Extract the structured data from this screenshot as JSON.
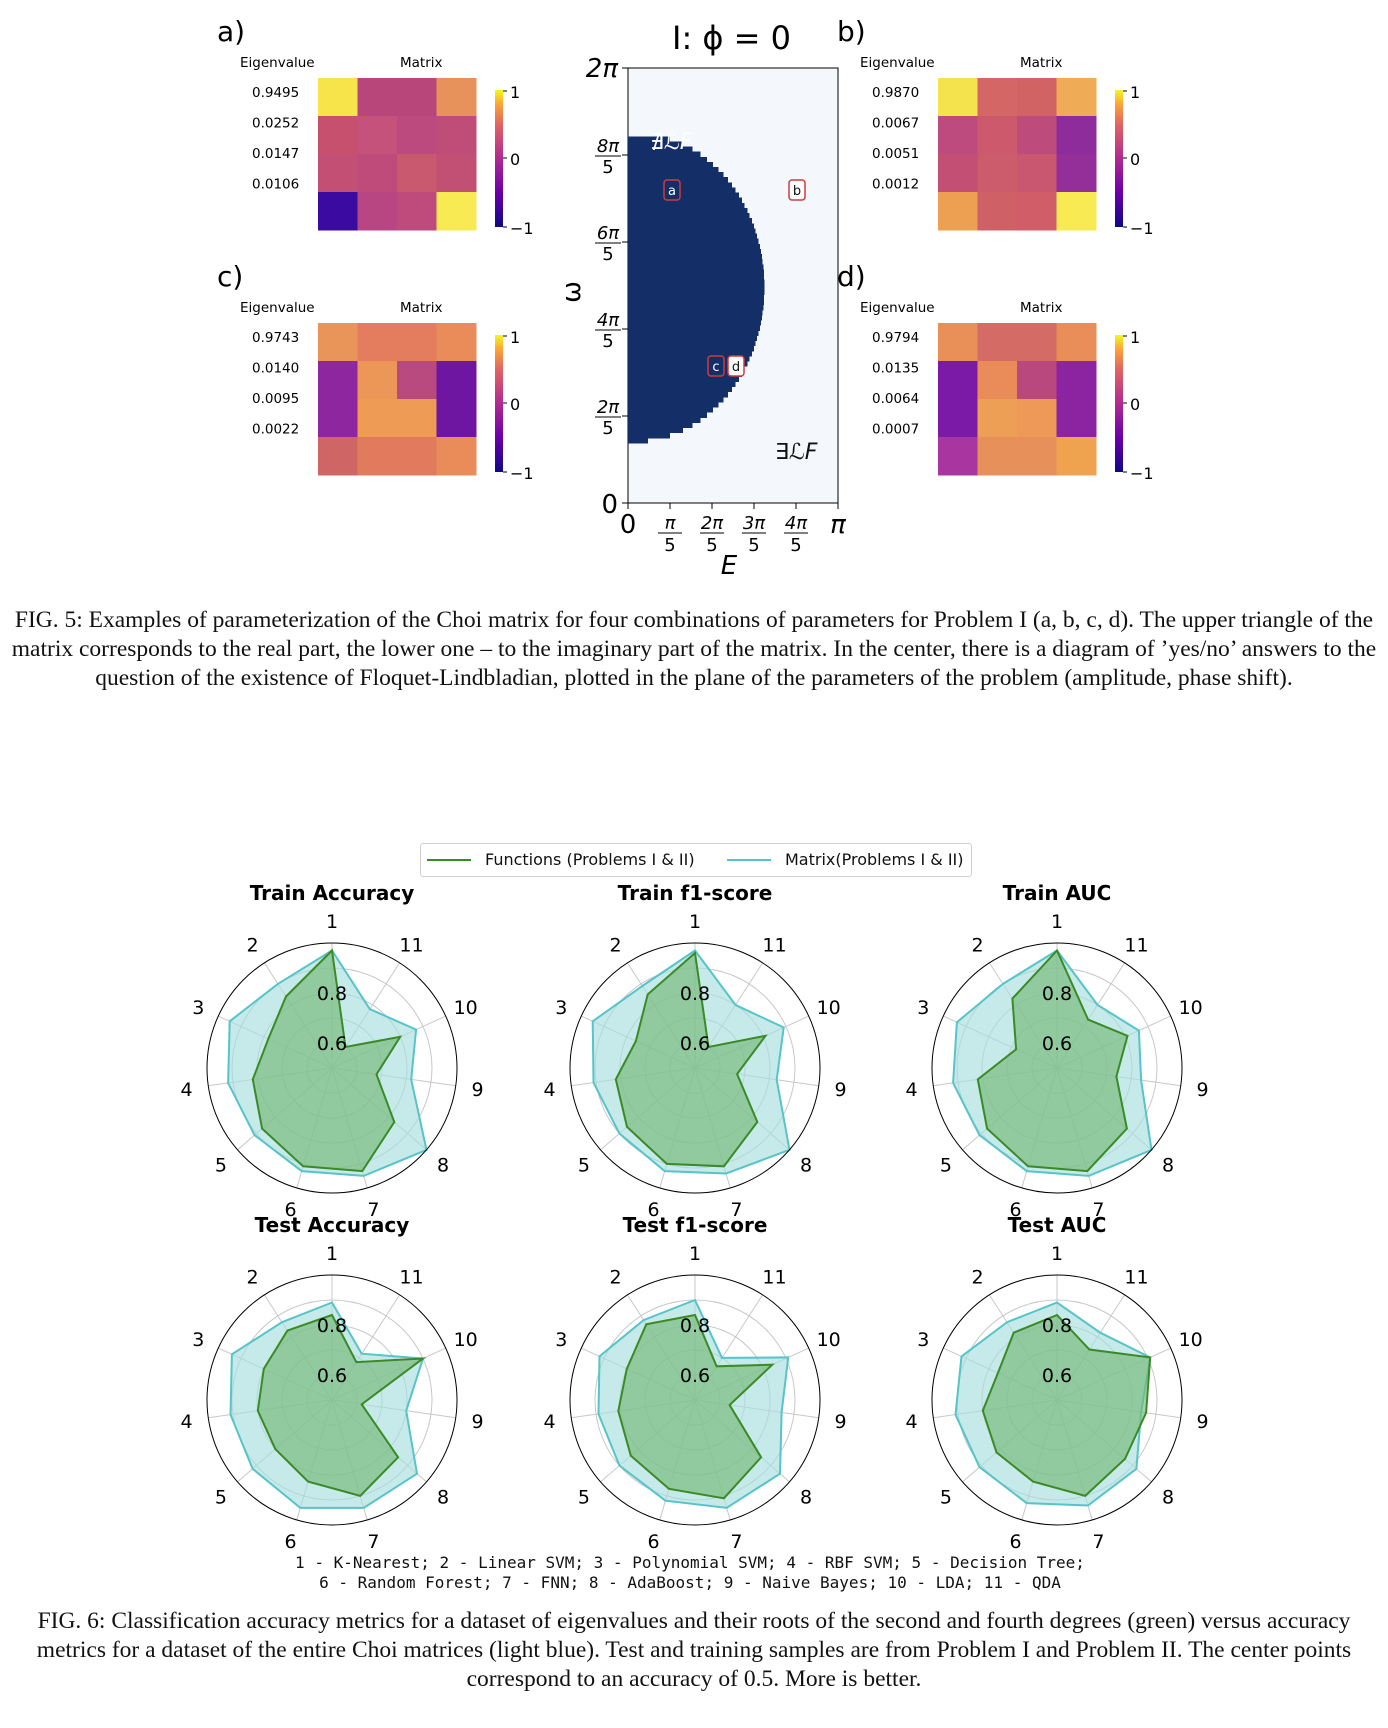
{
  "fig5": {
    "panels": [
      {
        "label": "a)",
        "eig_header": "Eigenvalue",
        "mat_header": "Matrix",
        "eigenvalues": [
          "0.9495",
          "0.0252",
          "0.0147",
          "0.0106"
        ],
        "colorbar_ticks": [
          "1",
          "0",
          "−1"
        ],
        "cells": [
          [
            "#f7e34a",
            "#b9467a",
            "#b9467a",
            "#e7925a"
          ],
          [
            "#c7506e",
            "#c4527a",
            "#bc4a7e",
            "#c04c78"
          ],
          [
            "#c34f74",
            "#bf4b7b",
            "#c9596f",
            "#c24f74"
          ],
          [
            "#3b0aa1",
            "#b74683",
            "#bf4a7c",
            "#f7ea52"
          ]
        ]
      },
      {
        "label": "b)",
        "eig_header": "Eigenvalue",
        "mat_header": "Matrix",
        "eigenvalues": [
          "0.9870",
          "0.0067",
          "0.0051",
          "0.0012"
        ],
        "colorbar_ticks": [
          "1",
          "0",
          "−1"
        ],
        "cells": [
          [
            "#f5e34e",
            "#d46665",
            "#d16364",
            "#efab55"
          ],
          [
            "#bd4b7d",
            "#cd5a6c",
            "#bd4b7c",
            "#8f2c9c"
          ],
          [
            "#c44f74",
            "#cc5b6c",
            "#c95770",
            "#942f9a"
          ],
          [
            "#eda052",
            "#cf6066",
            "#d05d68",
            "#f7ea52"
          ]
        ]
      },
      {
        "label": "c)",
        "eig_header": "Eigenvalue",
        "mat_header": "Matrix",
        "eigenvalues": [
          "0.9743",
          "0.0140",
          "0.0095",
          "0.0022"
        ],
        "colorbar_ticks": [
          "1",
          "0",
          "−1"
        ],
        "cells": [
          [
            "#e9955a",
            "#e37d5e",
            "#e37d5e",
            "#e98c5a"
          ],
          [
            "#8e26a0",
            "#ec9658",
            "#b94a7f",
            "#6e16a2"
          ],
          [
            "#8e26a0",
            "#ee9c55",
            "#ee9c55",
            "#6e16a2"
          ],
          [
            "#d06565",
            "#e27a5d",
            "#e27a5d",
            "#e98c5a"
          ]
        ]
      },
      {
        "label": "d)",
        "eig_header": "Eigenvalue",
        "mat_header": "Matrix",
        "eigenvalues": [
          "0.9794",
          "0.0135",
          "0.0064",
          "0.0007"
        ],
        "colorbar_ticks": [
          "1",
          "0",
          "−1"
        ],
        "cells": [
          [
            "#e98f58",
            "#d46c65",
            "#d46c65",
            "#e98e58"
          ],
          [
            "#7b1aa6",
            "#e98c59",
            "#b9487f",
            "#8c23a0"
          ],
          [
            "#7b1aa6",
            "#eda055",
            "#ee9957",
            "#8c23a0"
          ],
          [
            "#a935a0",
            "#e7905a",
            "#e7905a",
            "#efa34f"
          ]
        ]
      }
    ],
    "phase": {
      "title": "I: ϕ = 0",
      "ylabel": "ω",
      "xlabel": "E",
      "yticks": [
        "0",
        "2π/5",
        "4π/5",
        "6π/5",
        "8π/5",
        "2π"
      ],
      "xticks": [
        "0",
        "π/5",
        "2π/5",
        "3π/5",
        "4π/5",
        "π"
      ],
      "region_not_exists": "∄ℒF",
      "region_exists": "∃ℒF",
      "markers": [
        "a",
        "b",
        "c",
        "d"
      ],
      "colors": {
        "region": "#142f67",
        "background": "#f4f8fc"
      }
    },
    "caption": "FIG. 5: Examples of parameterization of the Choi matrix for four combinations of parameters for Problem I (a, b, c, d). The upper triangle of the matrix corresponds to the real part, the lower one – to the imaginary part of the matrix. In the center, there is a diagram of ’yes/no’ answers to the question of the existence of Floquet-Lindbladian, plotted in the plane of the parameters of the problem (amplitude, phase shift)."
  },
  "fig6": {
    "legend": {
      "functions": "Functions (Problems I & II)",
      "matrix": "Matrix(Problems I & II)"
    },
    "colors": {
      "functions": "#3a8a26",
      "functions_fill": "#74b877",
      "matrix": "#56c4c8",
      "matrix_fill": "#a8dedd"
    },
    "chart_data": [
      {
        "type": "radar",
        "title": "Train Accuracy",
        "categories": [
          "1",
          "2",
          "3",
          "4",
          "5",
          "6",
          "7",
          "8",
          "9",
          "10",
          "11"
        ],
        "radial_ticks": [
          "0.6",
          "0.8"
        ],
        "rlim": [
          0.5,
          1.0
        ],
        "series": [
          {
            "name": "Functions (Problems I & II)",
            "values": [
              0.97,
              0.84,
              0.78,
              0.82,
              0.87,
              0.91,
              0.93,
              0.83,
              0.68,
              0.8,
              0.6
            ]
          },
          {
            "name": "Matrix(Problems I & II)",
            "values": [
              0.97,
              0.9,
              0.95,
              0.92,
              0.91,
              0.93,
              0.95,
              1.0,
              0.82,
              0.87,
              0.78
            ]
          }
        ]
      },
      {
        "type": "radar",
        "title": "Train f1-score",
        "categories": [
          "1",
          "2",
          "3",
          "4",
          "5",
          "6",
          "7",
          "8",
          "9",
          "10",
          "11"
        ],
        "radial_ticks": [
          "0.6",
          "0.8"
        ],
        "rlim": [
          0.5,
          1.0
        ],
        "series": [
          {
            "name": "Functions (Problems I & II)",
            "values": [
              0.96,
              0.85,
              0.76,
              0.82,
              0.86,
              0.9,
              0.91,
              0.83,
              0.67,
              0.81,
              0.6
            ]
          },
          {
            "name": "Matrix(Problems I & II)",
            "values": [
              0.97,
              0.89,
              0.95,
              0.91,
              0.9,
              0.93,
              0.94,
              1.0,
              0.83,
              0.89,
              0.8
            ]
          }
        ]
      },
      {
        "type": "radar",
        "title": "Train AUC",
        "categories": [
          "1",
          "2",
          "3",
          "4",
          "5",
          "6",
          "7",
          "8",
          "9",
          "10",
          "11"
        ],
        "radial_ticks": [
          "0.6",
          "0.8"
        ],
        "rlim": [
          0.5,
          1.0
        ],
        "series": [
          {
            "name": "Functions (Problems I & II)",
            "values": [
              0.97,
              0.83,
              0.68,
              0.82,
              0.87,
              0.91,
              0.93,
              0.87,
              0.74,
              0.81,
              0.73
            ]
          },
          {
            "name": "Matrix(Problems I & II)",
            "values": [
              0.97,
              0.9,
              0.94,
              0.92,
              0.91,
              0.93,
              0.95,
              1.0,
              0.84,
              0.86,
              0.8
            ]
          }
        ]
      },
      {
        "type": "radar",
        "title": "Test Accuracy",
        "categories": [
          "1",
          "2",
          "3",
          "4",
          "5",
          "6",
          "7",
          "8",
          "9",
          "10",
          "11"
        ],
        "radial_ticks": [
          "0.6",
          "0.8"
        ],
        "rlim": [
          0.5,
          1.0
        ],
        "series": [
          {
            "name": "Functions (Problems I & II)",
            "values": [
              0.84,
              0.83,
              0.8,
              0.8,
              0.8,
              0.84,
              0.9,
              0.85,
              0.62,
              0.9,
              0.68
            ]
          },
          {
            "name": "Matrix(Problems I & II)",
            "values": [
              0.89,
              0.87,
              0.94,
              0.91,
              0.92,
              0.95,
              0.95,
              0.95,
              0.8,
              0.9,
              0.72
            ]
          }
        ]
      },
      {
        "type": "radar",
        "title": "Test f1-score",
        "categories": [
          "1",
          "2",
          "3",
          "4",
          "5",
          "6",
          "7",
          "8",
          "9",
          "10",
          "11"
        ],
        "radial_ticks": [
          "0.6",
          "0.8"
        ],
        "rlim": [
          0.5,
          1.0
        ],
        "series": [
          {
            "name": "Functions (Problems I & II)",
            "values": [
              0.84,
              0.86,
              0.8,
              0.81,
              0.84,
              0.87,
              0.91,
              0.85,
              0.64,
              0.84,
              0.66
            ]
          },
          {
            "name": "Matrix(Problems I & II)",
            "values": [
              0.9,
              0.88,
              0.92,
              0.89,
              0.9,
              0.92,
              0.95,
              0.95,
              0.85,
              0.91,
              0.7
            ]
          }
        ]
      },
      {
        "type": "radar",
        "title": "Test AUC",
        "categories": [
          "1",
          "2",
          "3",
          "4",
          "5",
          "6",
          "7",
          "8",
          "9",
          "10",
          "11"
        ],
        "radial_ticks": [
          "0.6",
          "0.8"
        ],
        "rlim": [
          0.5,
          1.0
        ],
        "series": [
          {
            "name": "Functions (Problems I & II)",
            "values": [
              0.84,
              0.82,
              0.76,
              0.8,
              0.82,
              0.84,
              0.9,
              0.86,
              0.86,
              0.91,
              0.74
            ]
          },
          {
            "name": "Matrix(Problems I & II)",
            "values": [
              0.89,
              0.87,
              0.92,
              0.91,
              0.91,
              0.93,
              0.94,
              0.92,
              0.84,
              0.91,
              0.82
            ]
          }
        ]
      }
    ],
    "key_line1": "1 - K-Nearest; 2 - Linear SVM; 3 - Polynomial SVM; 4 - RBF SVM; 5 - Decision Tree;",
    "key_line2": "6 - Random Forest; 7 - FNN; 8 - AdaBoost; 9 - Naive Bayes; 10 - LDA; 11 - QDA",
    "caption": "FIG. 6: Classification accuracy metrics for a dataset of eigenvalues and their roots of the second and fourth degrees (green) versus accuracy metrics for a dataset of the entire Choi matrices (light blue). Test and training samples are from Problem I and Problem II. The center points correspond to an accuracy of 0.5. More is better."
  }
}
